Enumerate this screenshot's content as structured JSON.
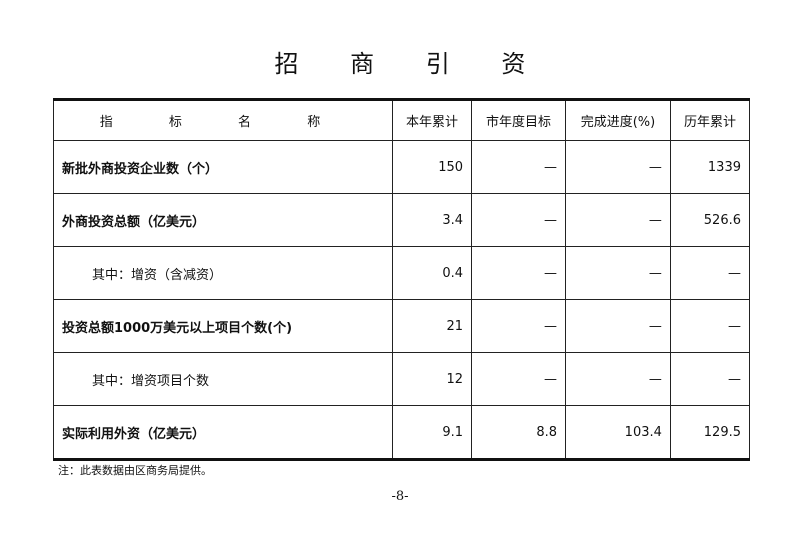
{
  "title": "招 商 引 资",
  "table": {
    "headers": [
      "指 标 名 称",
      "本年累计",
      "市年度目标",
      "完成进度(%)",
      "历年累计"
    ],
    "rows": [
      {
        "name": "新批外商投资企业数（个）",
        "cells": [
          "150",
          "—",
          "—",
          "1339"
        ],
        "bold": true,
        "indent": false
      },
      {
        "name": "外商投资总额（亿美元）",
        "cells": [
          "3.4",
          "—",
          "—",
          "526.6"
        ],
        "bold": true,
        "indent": false
      },
      {
        "name": "其中：增资（含减资）",
        "cells": [
          "0.4",
          "—",
          "—",
          "—"
        ],
        "bold": false,
        "indent": true
      },
      {
        "name": "投资总额1000万美元以上项目个数(个)",
        "cells": [
          "21",
          "—",
          "—",
          "—"
        ],
        "bold": true,
        "indent": false
      },
      {
        "name": "其中：增资项目个数",
        "cells": [
          "12",
          "—",
          "—",
          "—"
        ],
        "bold": false,
        "indent": true
      },
      {
        "name": "实际利用外资（亿美元）",
        "cells": [
          "9.1",
          "8.8",
          "103.4",
          "129.5"
        ],
        "bold": true,
        "indent": false
      }
    ]
  },
  "note": "注：此表数据由区商务局提供。",
  "page_number": "-8-"
}
